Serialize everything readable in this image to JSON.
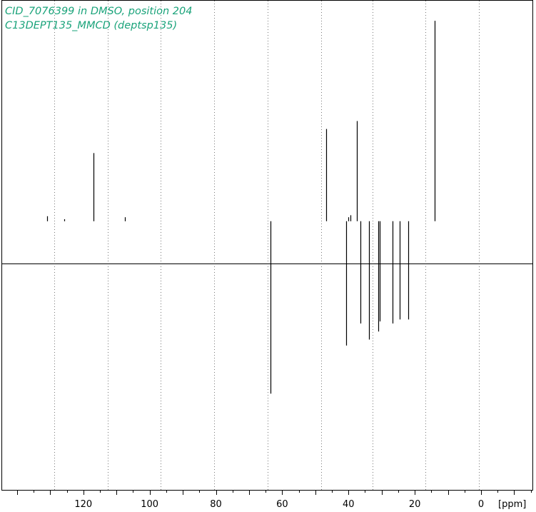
{
  "chart_data": {
    "type": "line",
    "title_lines": [
      "CID_7076399 in DMSO, position 204",
      "C13DEPT135_MMCD (deptsp135)"
    ],
    "xlabel": "[ppm]",
    "x_reversed": true,
    "xlim": [
      144.5,
      -15.5
    ],
    "ylim": [
      -1.34,
      1.1
    ],
    "grid": "vertical-dotted",
    "x_ticks": [
      120,
      100,
      80,
      60,
      40,
      20,
      0
    ],
    "x_tick_labels": [
      "120",
      "100",
      "80",
      "60",
      "40",
      "20",
      "0"
    ],
    "minor_tick_step": 5,
    "grid_lines_ppm": [
      128.7,
      112.6,
      96.6,
      80.5,
      64.4,
      48.3,
      32.8,
      16.7,
      0.6
    ],
    "title_color": "#1aa37a",
    "series": [
      {
        "peaks": [
          {
            "ppm": 116.9,
            "intensity": 0.34
          },
          {
            "ppm": 46.8,
            "intensity": 0.46
          },
          {
            "ppm": 37.4,
            "intensity": 0.5
          },
          {
            "ppm": 14.1,
            "intensity": 1.0
          },
          {
            "ppm": 63.6,
            "intensity": -0.86
          },
          {
            "ppm": 40.8,
            "intensity": -0.62
          },
          {
            "ppm": 36.3,
            "intensity": -0.51
          },
          {
            "ppm": 33.9,
            "intensity": -0.59
          },
          {
            "ppm": 31.0,
            "intensity": -0.55
          },
          {
            "ppm": 30.6,
            "intensity": -0.5
          },
          {
            "ppm": 26.7,
            "intensity": -0.51
          },
          {
            "ppm": 24.5,
            "intensity": -0.49
          },
          {
            "ppm": 22.0,
            "intensity": -0.49
          },
          {
            "ppm": 130.9,
            "intensity": 0.025
          },
          {
            "ppm": 107.5,
            "intensity": 0.02
          },
          {
            "ppm": 125.8,
            "intensity": 0.01
          },
          {
            "ppm": 39.5,
            "intensity": 0.03
          },
          {
            "ppm": 40.0,
            "intensity": 0.02
          }
        ]
      }
    ]
  }
}
